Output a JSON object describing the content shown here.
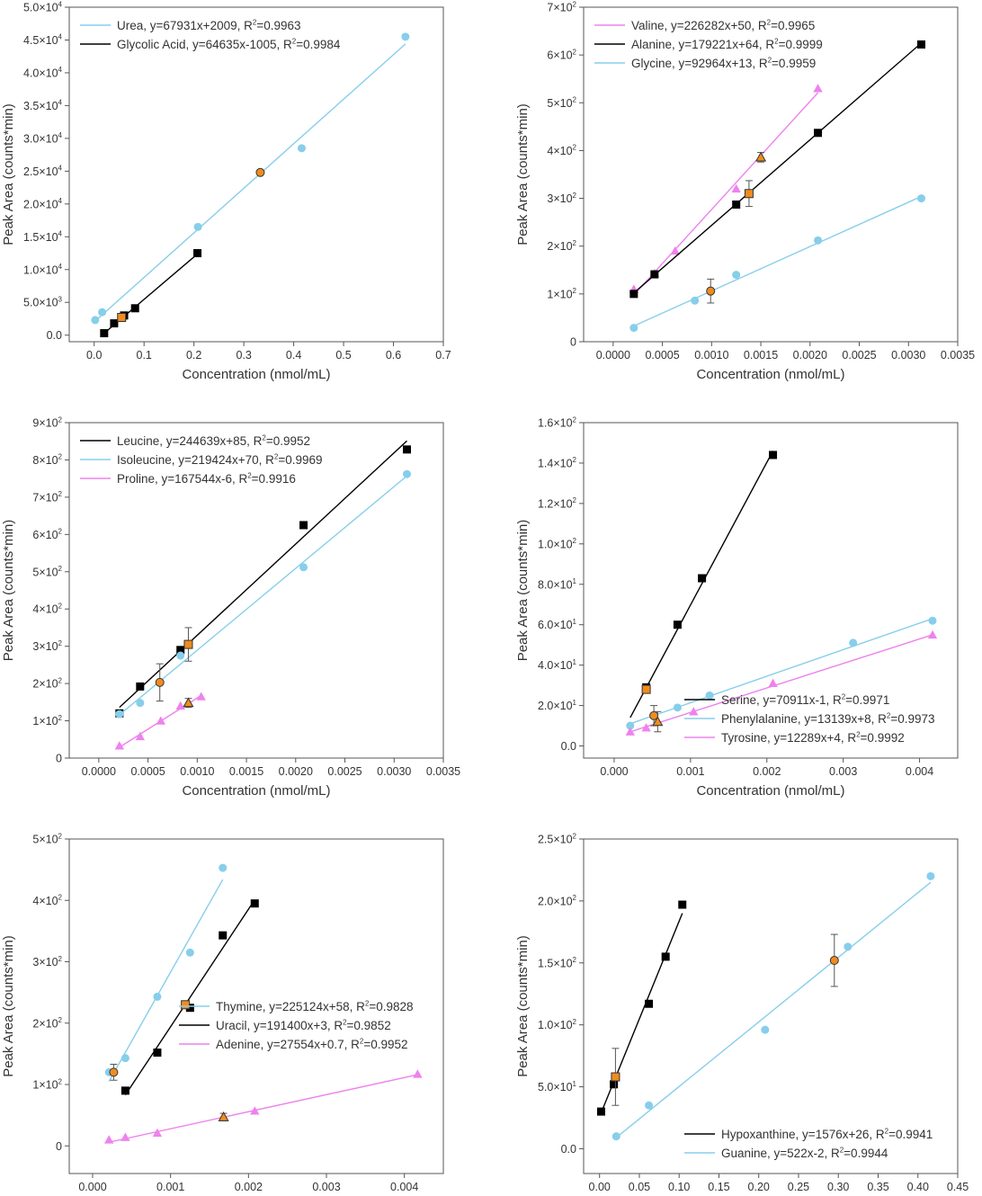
{
  "chart_data": [
    {
      "type": "scatter",
      "xlabel": "Concentration (nmol/mL)",
      "ylabel": "Peak Area (counts*min)",
      "xlim": [
        -0.05,
        0.7
      ],
      "ylim": [
        -1000,
        50000
      ],
      "x_ticks": [
        "0.0",
        "0.1",
        "0.2",
        "0.3",
        "0.4",
        "0.5",
        "0.6",
        "0.7"
      ],
      "x_tick_values": [
        0,
        0.1,
        0.2,
        0.3,
        0.4,
        0.5,
        0.6,
        0.7
      ],
      "y_ticks": [
        "0.0",
        "5.0×10³",
        "1.0×10⁴",
        "1.5×10⁴",
        "2.0×10⁴",
        "2.5×10⁴",
        "3.0×10⁴",
        "3.5×10⁴",
        "4.0×10⁴",
        "4.5×10⁴",
        "5.0×10⁴"
      ],
      "y_tick_values": [
        0,
        5000,
        10000,
        15000,
        20000,
        25000,
        30000,
        35000,
        40000,
        45000,
        50000
      ],
      "legend_position": "top-left",
      "series": [
        {
          "name": "Urea",
          "label": "Urea, y=67931x+2009, R²=0.9963",
          "color": "#87ceeb",
          "marker": "circle",
          "x": [
            0.002,
            0.016,
            0.208,
            0.416,
            0.624
          ],
          "y": [
            2300,
            3500,
            16500,
            28500,
            45500
          ],
          "fit": {
            "x": [
              0.002,
              0.624
            ],
            "y": [
              2145,
              44398
            ]
          }
        },
        {
          "name": "Glycolic Acid",
          "label": "Glycolic Acid, y=64635x-1005, R²=0.9984",
          "color": "#000000",
          "marker": "square",
          "x": [
            0.02,
            0.04,
            0.06,
            0.082,
            0.207
          ],
          "y": [
            300,
            1800,
            3000,
            4100,
            12500
          ],
          "fit": {
            "x": [
              0.02,
              0.207
            ],
            "y": [
              288,
              12374
            ]
          }
        }
      ],
      "samples": [
        {
          "x": 0.055,
          "y": 2700,
          "marker": "square",
          "err": 0
        },
        {
          "x": 0.333,
          "y": 24800,
          "marker": "circle",
          "err": 0
        }
      ]
    },
    {
      "type": "scatter",
      "xlabel": "Concentration (nmol/mL)",
      "ylabel": "Peak Area (counts*min)",
      "xlim": [
        -0.0003,
        0.0035
      ],
      "ylim": [
        0,
        700
      ],
      "x_ticks": [
        "0.0000",
        "0.0005",
        "0.0010",
        "0.0015",
        "0.0020",
        "0.0025",
        "0.0030",
        "0.0035"
      ],
      "x_tick_values": [
        0,
        0.0005,
        0.001,
        0.0015,
        0.002,
        0.0025,
        0.003,
        0.0035
      ],
      "y_ticks": [
        "0",
        "1×10²",
        "2×10²",
        "3×10²",
        "4×10²",
        "5×10²",
        "6×10²",
        "7×10²"
      ],
      "y_tick_values": [
        0,
        100,
        200,
        300,
        400,
        500,
        600,
        700
      ],
      "legend_position": "top-left",
      "series": [
        {
          "name": "Valine",
          "label": "Valine, y=226282x+50, R²=0.9965",
          "color": "#ee82ee",
          "marker": "triangle",
          "x": [
            0.00021,
            0.00042,
            0.00063,
            0.00125,
            0.00208
          ],
          "y": [
            110,
            143,
            190,
            320,
            530
          ],
          "fit": {
            "x": [
              0.00021,
              0.00208
            ],
            "y": [
              98,
              521
            ]
          }
        },
        {
          "name": "Alanine",
          "label": "Alanine, y=179221x+64, R²=0.9999",
          "color": "#000000",
          "marker": "square",
          "x": [
            0.00021,
            0.00042,
            0.00125,
            0.00208,
            0.00313
          ],
          "y": [
            100,
            141,
            287,
            437,
            622
          ],
          "fit": {
            "x": [
              0.00021,
              0.00313
            ],
            "y": [
              102,
              625
            ]
          }
        },
        {
          "name": "Glycine",
          "label": "Glycine, y=92964x+13, R²=0.9959",
          "color": "#87ceeb",
          "marker": "circle",
          "x": [
            0.00021,
            0.00083,
            0.00125,
            0.00208,
            0.00313
          ],
          "y": [
            29,
            86,
            140,
            212,
            300
          ],
          "fit": {
            "x": [
              0.00021,
              0.00313
            ],
            "y": [
              33,
              304
            ]
          }
        }
      ],
      "samples": [
        {
          "x": 0.00099,
          "y": 106,
          "marker": "circle",
          "err": 25
        },
        {
          "x": 0.00138,
          "y": 310,
          "marker": "square",
          "err": 27
        },
        {
          "x": 0.0015,
          "y": 386,
          "marker": "triangle",
          "err": 10
        }
      ]
    },
    {
      "type": "scatter",
      "xlabel": "Concentration (nmol/mL)",
      "ylabel": "Peak Area (counts*min)",
      "xlim": [
        -0.0003,
        0.0035
      ],
      "ylim": [
        0,
        900
      ],
      "x_ticks": [
        "0.0000",
        "0.0005",
        "0.0010",
        "0.0015",
        "0.0020",
        "0.0025",
        "0.0030",
        "0.0035"
      ],
      "x_tick_values": [
        0,
        0.0005,
        0.001,
        0.0015,
        0.002,
        0.0025,
        0.003,
        0.0035
      ],
      "y_ticks": [
        "0",
        "1×10²",
        "2×10²",
        "3×10²",
        "4×10²",
        "5×10²",
        "6×10²",
        "7×10²",
        "8×10²",
        "9×10²"
      ],
      "y_tick_values": [
        0,
        100,
        200,
        300,
        400,
        500,
        600,
        700,
        800,
        900
      ],
      "legend_position": "top-left",
      "series": [
        {
          "name": "Leucine",
          "label": "Leucine, y=244639x+85, R²=0.9952",
          "color": "#000000",
          "marker": "square",
          "x": [
            0.00021,
            0.00042,
            0.00083,
            0.00208,
            0.00313
          ],
          "y": [
            120,
            192,
            290,
            625,
            828
          ],
          "fit": {
            "x": [
              0.00021,
              0.00313
            ],
            "y": [
              136,
              851
            ]
          }
        },
        {
          "name": "Isoleucine",
          "label": "Isoleucine, y=219424x+70, R²=0.9969",
          "color": "#87ceeb",
          "marker": "circle",
          "x": [
            0.00021,
            0.00042,
            0.00083,
            0.00208,
            0.00313
          ],
          "y": [
            118,
            148,
            275,
            512,
            762
          ],
          "fit": {
            "x": [
              0.00021,
              0.00313
            ],
            "y": [
              116,
              757
            ]
          }
        },
        {
          "name": "Proline",
          "label": "Proline, y=167544x-6, R²=0.9916",
          "color": "#ee82ee",
          "marker": "triangle",
          "x": [
            0.00021,
            0.00042,
            0.00063,
            0.00083,
            0.00104
          ],
          "y": [
            33,
            58,
            100,
            140,
            165
          ],
          "fit": {
            "x": [
              0.00021,
              0.00104
            ],
            "y": [
              29,
              168
            ]
          }
        }
      ],
      "samples": [
        {
          "x": 0.00062,
          "y": 203,
          "marker": "circle",
          "err": 50
        },
        {
          "x": 0.00091,
          "y": 305,
          "marker": "square",
          "err": 45
        },
        {
          "x": 0.00091,
          "y": 148,
          "marker": "triangle",
          "err": 12
        }
      ]
    },
    {
      "type": "scatter",
      "xlabel": "Concentration (nmol/mL)",
      "ylabel": "Peak Area (counts*min)",
      "xlim": [
        -0.0004,
        0.0045
      ],
      "ylim": [
        -6,
        160
      ],
      "x_ticks": [
        "0.000",
        "0.001",
        "0.002",
        "0.003",
        "0.004"
      ],
      "x_tick_values": [
        0,
        0.001,
        0.002,
        0.003,
        0.004
      ],
      "y_ticks": [
        "0.0",
        "2.0×10¹",
        "4.0×10¹",
        "6.0×10¹",
        "8.0×10¹",
        "1.0×10²",
        "1.2×10²",
        "1.4×10²",
        "1.6×10²"
      ],
      "y_tick_values": [
        0,
        20,
        40,
        60,
        80,
        100,
        120,
        140,
        160
      ],
      "legend_position": "bottom-right",
      "series": [
        {
          "name": "Serine",
          "label": "Serine, y=70911x-1, R²=0.9971",
          "color": "#000000",
          "marker": "square",
          "x": [
            0.00042,
            0.00083,
            0.00115,
            0.00208
          ],
          "y": [
            29,
            60,
            83,
            144
          ],
          "fit": {
            "x": [
              0.00021,
              0.00208
            ],
            "y": [
              14,
              146
            ]
          }
        },
        {
          "name": "Phenylalanine",
          "label": "Phenylalanine, y=13139x+8, R²=0.9973",
          "color": "#87ceeb",
          "marker": "circle",
          "x": [
            0.00021,
            0.00083,
            0.00125,
            0.00313,
            0.00417
          ],
          "y": [
            10,
            19,
            25,
            51,
            62
          ],
          "fit": {
            "x": [
              0.00021,
              0.00417
            ],
            "y": [
              11,
              63
            ]
          }
        },
        {
          "name": "Tyrosine",
          "label": "Tyrosine, y=12289x+4, R²=0.9992",
          "color": "#ee82ee",
          "marker": "triangle",
          "x": [
            0.00021,
            0.00042,
            0.00104,
            0.00208,
            0.00417
          ],
          "y": [
            7,
            9,
            17,
            31,
            55
          ],
          "fit": {
            "x": [
              0.00021,
              0.00417
            ],
            "y": [
              7,
              55
            ]
          }
        }
      ],
      "samples": [
        {
          "x": 0.00042,
          "y": 28,
          "marker": "square",
          "err": 0
        },
        {
          "x": 0.00052,
          "y": 15,
          "marker": "circle",
          "err": 5
        },
        {
          "x": 0.00057,
          "y": 12,
          "marker": "triangle",
          "err": 5
        }
      ]
    },
    {
      "type": "scatter",
      "xlabel": "Concentration (nmol/mL)",
      "ylabel": "Peak Area (counts*min)",
      "xlim": [
        -0.0003,
        0.0045
      ],
      "ylim": [
        -45,
        500
      ],
      "x_ticks": [
        "0.000",
        "0.001",
        "0.002",
        "0.003",
        "0.004"
      ],
      "x_tick_values": [
        0,
        0.001,
        0.002,
        0.003,
        0.004
      ],
      "y_ticks": [
        "0",
        "1×10²",
        "2×10²",
        "3×10²",
        "4×10²",
        "5×10²"
      ],
      "y_tick_values": [
        0,
        100,
        200,
        300,
        400,
        500
      ],
      "legend_position": "center-right",
      "series": [
        {
          "name": "Thymine",
          "label": "Thymine, y=225124x+58, R²=0.9828",
          "color": "#87ceeb",
          "marker": "circle",
          "x": [
            0.00021,
            0.00042,
            0.00083,
            0.00125,
            0.00167
          ],
          "y": [
            120,
            143,
            243,
            315,
            453
          ],
          "fit": {
            "x": [
              0.00021,
              0.00167
            ],
            "y": [
              105,
              434
            ]
          }
        },
        {
          "name": "Uracil",
          "label": "Uracil, y=191400x+3, R²=0.9852",
          "color": "#000000",
          "marker": "square",
          "x": [
            0.00042,
            0.00083,
            0.00125,
            0.00167,
            0.00208
          ],
          "y": [
            90,
            152,
            225,
            343,
            395
          ],
          "fit": {
            "x": [
              0.00042,
              0.00208
            ],
            "y": [
              83,
              401
            ]
          }
        },
        {
          "name": "Adenine",
          "label": "Adenine, y=27554x+0.7, R²=0.9952",
          "color": "#ee82ee",
          "marker": "triangle",
          "x": [
            0.00021,
            0.00042,
            0.00083,
            0.00208,
            0.00417
          ],
          "y": [
            10,
            14,
            21,
            57,
            117
          ],
          "fit": {
            "x": [
              0.00021,
              0.00417
            ],
            "y": [
              6,
              116
            ]
          }
        }
      ],
      "samples": [
        {
          "x": 0.00027,
          "y": 120,
          "marker": "circle",
          "err": 13
        },
        {
          "x": 0.00119,
          "y": 230,
          "marker": "square",
          "err": 0
        },
        {
          "x": 0.00168,
          "y": 47,
          "marker": "triangle",
          "err": 6
        }
      ]
    },
    {
      "type": "scatter",
      "xlabel": "Concentration (nmol/mL)",
      "ylabel": "Peak Area (counts*min)",
      "xlim": [
        -0.02,
        0.45
      ],
      "ylim": [
        -20,
        250
      ],
      "x_ticks": [
        "0.00",
        "0.05",
        "0.10",
        "0.15",
        "0.20",
        "0.25",
        "0.30",
        "0.35",
        "0.40",
        "0.45"
      ],
      "x_tick_values": [
        0,
        0.05,
        0.1,
        0.15,
        0.2,
        0.25,
        0.3,
        0.35,
        0.4,
        0.45
      ],
      "y_ticks": [
        "0.0",
        "5.0×10¹",
        "1.0×10²",
        "1.5×10²",
        "2.0×10²",
        "2.5×10²"
      ],
      "y_tick_values": [
        0,
        50,
        100,
        150,
        200,
        250
      ],
      "legend_position": "bottom-right",
      "series": [
        {
          "name": "Hypoxanthine",
          "label": "Hypoxanthine, y=1576x+26, R²=0.9941",
          "color": "#000000",
          "marker": "square",
          "x": [
            0.002,
            0.018,
            0.062,
            0.083,
            0.104
          ],
          "y": [
            30,
            52,
            117,
            155,
            197
          ],
          "fit": {
            "x": [
              0.002,
              0.104
            ],
            "y": [
              29,
              190
            ]
          }
        },
        {
          "name": "Guanine",
          "label": "Guanine, y=522x-2, R²=0.9944",
          "color": "#87ceeb",
          "marker": "circle",
          "x": [
            0.021,
            0.062,
            0.208,
            0.312,
            0.416
          ],
          "y": [
            10,
            35,
            96,
            163,
            220
          ],
          "fit": {
            "x": [
              0.021,
              0.416
            ],
            "y": [
              9,
              215
            ]
          }
        }
      ],
      "samples": [
        {
          "x": 0.02,
          "y": 58,
          "marker": "square",
          "err": 23
        },
        {
          "x": 0.295,
          "y": 152,
          "marker": "circle",
          "err": 21
        }
      ]
    }
  ]
}
